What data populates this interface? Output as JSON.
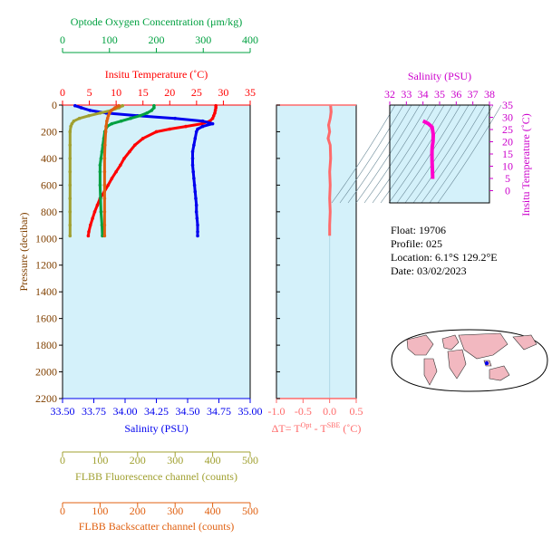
{
  "colors": {
    "panel_bg": "#d4f1fa",
    "temperature": "#ff0000",
    "salinity": "#0000ee",
    "oxygen": "#00a040",
    "fluorescence": "#a0a030",
    "backscatter": "#e06010",
    "delta_t": "#ff6a6a",
    "ts_curve": "#ff00cc",
    "ts_axis": "#cc00cc",
    "frame": "#000000",
    "pressure_axis": "#804000"
  },
  "info": {
    "float": "Float:  19706",
    "profile": "Profile:  025",
    "location": "Location:  6.1°S  129.2°E",
    "date": "Date:  03/02/2023"
  },
  "chart_data": [
    {
      "type": "line",
      "title": "",
      "ylabel": "Pressure (decibar)",
      "ylim": [
        2200,
        0
      ],
      "y_ticks": [
        "0",
        "200",
        "400",
        "600",
        "800",
        "1000",
        "1200",
        "1400",
        "1600",
        "1800",
        "2000",
        "2200"
      ],
      "grid": false,
      "axes": {
        "temperature": {
          "label": "Insitu Temperature (˚C)",
          "range": [
            0,
            35
          ],
          "ticks": [
            "0",
            "5",
            "10",
            "15",
            "20",
            "25",
            "30",
            "35"
          ]
        },
        "salinity": {
          "label": "Salinity (PSU)",
          "range": [
            33.5,
            35.0
          ],
          "ticks": [
            "33.50",
            "33.75",
            "34.00",
            "34.25",
            "34.50",
            "34.75",
            "35.00"
          ]
        },
        "oxygen": {
          "label": "Optode Oxygen Concentration (μm/kg)",
          "range": [
            0,
            400
          ],
          "ticks": [
            "0",
            "100",
            "200",
            "300",
            "400"
          ]
        },
        "fluorescence": {
          "label": "FLBB Fluorescence channel (counts)",
          "range": [
            0,
            500
          ],
          "ticks": [
            "0",
            "100",
            "200",
            "300",
            "400",
            "500"
          ]
        },
        "backscatter": {
          "label": "FLBB Backscatter channel (counts)",
          "range": [
            0,
            500
          ],
          "ticks": [
            "0",
            "100",
            "200",
            "300",
            "400",
            "500"
          ]
        }
      },
      "series": [
        {
          "axis": "temperature",
          "pressure": [
            5,
            20,
            40,
            60,
            80,
            100,
            120,
            140,
            160,
            180,
            200,
            250,
            300,
            350,
            400,
            450,
            500,
            550,
            600,
            650,
            700,
            750,
            800,
            850,
            900,
            950,
            980
          ],
          "values": [
            28.6,
            28.6,
            28.5,
            28.4,
            28.2,
            28.0,
            27.5,
            26.0,
            23.0,
            20.0,
            17.5,
            15.0,
            13.5,
            12.5,
            11.5,
            10.8,
            10.0,
            9.2,
            8.5,
            7.8,
            7.0,
            6.5,
            6.0,
            5.6,
            5.2,
            4.9,
            4.8
          ]
        },
        {
          "axis": "salinity",
          "pressure": [
            5,
            20,
            40,
            60,
            80,
            100,
            120,
            140,
            160,
            180,
            200,
            250,
            300,
            350,
            400,
            450,
            500,
            550,
            600,
            650,
            700,
            750,
            800,
            850,
            900,
            950,
            980
          ],
          "values": [
            33.6,
            33.65,
            33.72,
            33.85,
            34.1,
            34.4,
            34.62,
            34.7,
            34.62,
            34.58,
            34.57,
            34.56,
            34.55,
            34.54,
            34.54,
            34.54,
            34.545,
            34.55,
            34.555,
            34.56,
            34.565,
            34.57,
            34.57,
            34.575,
            34.58,
            34.58,
            34.58
          ]
        },
        {
          "axis": "oxygen",
          "pressure": [
            5,
            20,
            40,
            60,
            80,
            100,
            120,
            140,
            160,
            200,
            250,
            300,
            350,
            400,
            450,
            500,
            600,
            700,
            800,
            900,
            980
          ],
          "values": [
            195,
            195,
            190,
            180,
            165,
            145,
            125,
            105,
            95,
            90,
            88,
            86,
            84,
            82,
            80,
            80,
            80,
            81,
            82,
            84,
            85
          ]
        },
        {
          "axis": "fluorescence",
          "pressure": [
            5,
            20,
            40,
            60,
            80,
            100,
            120,
            140,
            160,
            200,
            300,
            400,
            500,
            600,
            700,
            800,
            900,
            980
          ],
          "values": [
            160,
            150,
            130,
            100,
            70,
            45,
            30,
            25,
            22,
            20,
            20,
            20,
            20,
            20,
            20,
            20,
            20,
            20
          ]
        },
        {
          "axis": "backscatter",
          "pressure": [
            5,
            20,
            40,
            60,
            80,
            100,
            120,
            160,
            200,
            300,
            400,
            500,
            600,
            700,
            800,
            900,
            980
          ],
          "values": [
            150,
            140,
            130,
            125,
            122,
            120,
            118,
            116,
            115,
            113,
            112,
            112,
            112,
            112,
            112,
            112,
            112
          ]
        }
      ]
    },
    {
      "type": "line",
      "title": "",
      "xlabel": "ΔT= T",
      "xlabel_sup1": "Opt",
      "xlabel_mid": " - T",
      "xlabel_sup2": "SBE",
      "xlabel_end": " (˚C)",
      "xlim": [
        -1.0,
        0.5
      ],
      "ylim": [
        2200,
        0
      ],
      "x_ticks": [
        "-1.0",
        "-0.5",
        "0.0",
        "0.5"
      ],
      "series": [
        {
          "pressure": [
            5,
            50,
            100,
            150,
            200,
            250,
            300,
            400,
            500,
            600,
            700,
            800,
            900,
            980
          ],
          "values": [
            0.02,
            0.03,
            0.01,
            -0.02,
            0.0,
            -0.03,
            0.01,
            0.02,
            0.0,
            0.01,
            0.0,
            0.01,
            0.0,
            0.0
          ]
        }
      ]
    },
    {
      "type": "line",
      "title": "",
      "xlabel": "Salinity (PSU)",
      "ylabel": "Insitu Temperature (˚C)",
      "xlim": [
        32,
        38
      ],
      "ylim": [
        -5,
        35
      ],
      "x_ticks": [
        "32",
        "33",
        "34",
        "35",
        "36",
        "37",
        "38"
      ],
      "y_ticks": [
        "0",
        "5",
        "10",
        "15",
        "20",
        "25",
        "30",
        "35"
      ],
      "series": [
        {
          "x": [
            34.58,
            34.58,
            34.57,
            34.56,
            34.55,
            34.54,
            34.54,
            34.56,
            34.6,
            34.62,
            34.55,
            34.3,
            34.0
          ],
          "y": [
            4.8,
            6.0,
            8.0,
            10.0,
            12.0,
            14.0,
            16.0,
            18.0,
            20.0,
            23.0,
            26.0,
            27.5,
            28.5
          ]
        }
      ]
    }
  ]
}
